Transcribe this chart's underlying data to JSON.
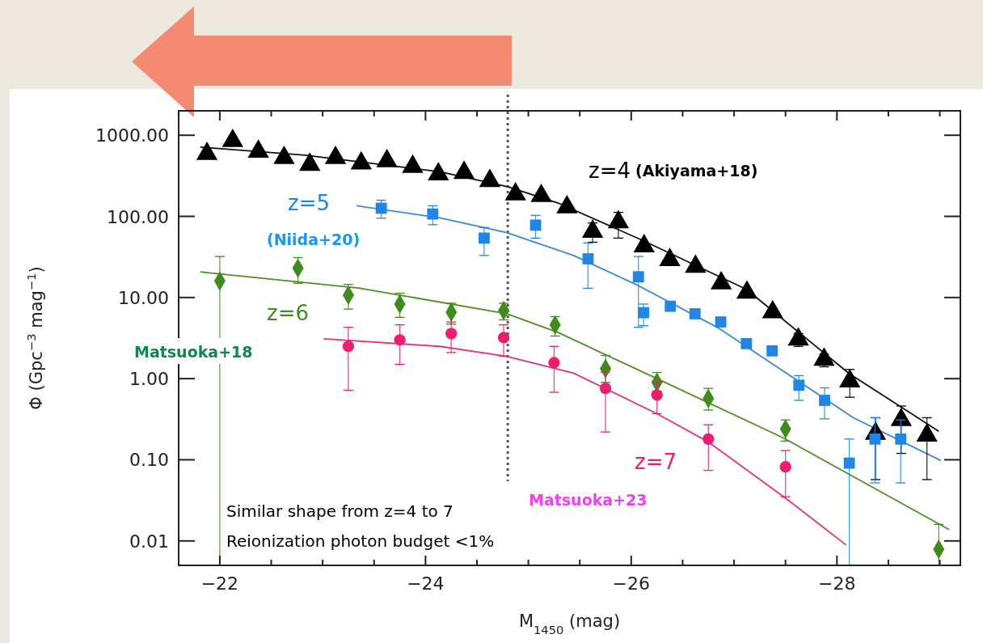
{
  "chart_data": {
    "type": "scatter",
    "xlabel": "M$_{1450}$ (mag)",
    "ylabel": "Φ (Gpc$^{−3}$ mag$^{−1}$)",
    "log": "y",
    "xlim": [
      -21.6,
      -29.2
    ],
    "ylim": [
      0.005,
      2000
    ],
    "xticks": [
      {
        "value": -22,
        "label": "−22"
      },
      {
        "value": -22.5,
        "label": null
      },
      {
        "value": -23,
        "label": null
      },
      {
        "value": -23.5,
        "label": null
      },
      {
        "value": -24,
        "label": "−24"
      },
      {
        "value": -24.5,
        "label": null
      },
      {
        "value": -25,
        "label": null
      },
      {
        "value": -25.5,
        "label": null
      },
      {
        "value": -26,
        "label": "−26"
      },
      {
        "value": -26.5,
        "label": null
      },
      {
        "value": -27,
        "label": null
      },
      {
        "value": -27.5,
        "label": null
      },
      {
        "value": -28,
        "label": "−28"
      },
      {
        "value": -28.5,
        "label": null
      },
      {
        "value": -29,
        "label": null
      }
    ],
    "yticks": [
      {
        "value": 1000,
        "label": "1000.00"
      },
      {
        "value": 100,
        "label": "100.00"
      },
      {
        "value": 10,
        "label": "10.00"
      },
      {
        "value": 1,
        "label": "1.00"
      },
      {
        "value": 0.1,
        "label": "0.10"
      },
      {
        "value": 0.01,
        "label": "0.01"
      }
    ],
    "grid": false,
    "series": [
      {
        "type": "line",
        "color": "#111111",
        "x": [
          -21.81,
          -22.83,
          -24.14,
          -24.8,
          -25.29,
          -26.12,
          -27.12,
          -28.12,
          -28.99
        ],
        "values": [
          713,
          567,
          355,
          232,
          146,
          50,
          12.6,
          1.15,
          0.225
        ]
      },
      {
        "type": "line",
        "color": "#3a88dc",
        "x": [
          -23.33,
          -24.14,
          -24.79,
          -25.44,
          -26.07,
          -26.85,
          -28.16,
          -29.01
        ],
        "values": [
          135,
          96,
          63,
          33,
          14,
          4.2,
          0.33,
          0.098
        ]
      },
      {
        "type": "line",
        "color": "#4f8f22",
        "x": [
          -21.81,
          -23.35,
          -24.79,
          -25.29,
          -26.25,
          -27.48,
          -28.12,
          -29.09
        ],
        "values": [
          20.7,
          13.1,
          6.3,
          3.7,
          1.0,
          0.186,
          0.066,
          0.0138
        ]
      },
      {
        "type": "line",
        "color": "#e63670",
        "x": [
          -23.01,
          -24.14,
          -24.79,
          -25.44,
          -26.25,
          -26.75,
          -27.51,
          -28.09
        ],
        "values": [
          3.1,
          2.5,
          1.88,
          1.17,
          0.37,
          0.166,
          0.033,
          0.0089
        ]
      },
      {
        "name": "z=4",
        "color": "#000000",
        "marker": "triangle",
        "x": [
          -21.875,
          -22.125,
          -22.375,
          -22.625,
          -22.875,
          -23.125,
          -23.375,
          -23.625,
          -23.875,
          -24.125,
          -24.375,
          -24.625,
          -24.875,
          -25.125,
          -25.375,
          -25.625,
          -25.875,
          -26.125,
          -26.375,
          -26.625,
          -26.875,
          -27.125,
          -27.375,
          -27.625,
          -27.875,
          -28.125,
          -28.375,
          -28.625,
          -28.875
        ],
        "values": [
          589,
          851,
          628,
          525,
          434,
          525,
          450,
          479,
          410,
          331,
          345,
          274,
          187,
          179,
          130,
          65,
          85,
          43,
          29,
          24,
          15,
          11.5,
          6.6,
          3.05,
          1.72,
          0.93,
          0.21,
          0.31,
          0.2
        ],
        "errors": [
          null,
          null,
          null,
          null,
          null,
          null,
          null,
          null,
          null,
          null,
          null,
          null,
          null,
          null,
          null,
          [
            48,
            83
          ],
          [
            54,
            112
          ],
          null,
          null,
          null,
          null,
          null,
          null,
          [
            2.5,
            3.6
          ],
          [
            1.4,
            2.0
          ],
          [
            0.59,
            1.3
          ],
          [
            0.057,
            0.33
          ],
          [
            0.12,
            0.46
          ],
          [
            0.057,
            0.33
          ]
        ]
      },
      {
        "name": "z=5",
        "color": "#1f86e6",
        "marker": "square",
        "x": [
          -23.57,
          -24.07,
          -24.57,
          -25.07,
          -25.58,
          -26.07,
          -26.12,
          -26.38,
          -26.62,
          -26.87,
          -27.12,
          -27.37,
          -27.63,
          -27.88,
          -28.12,
          -28.37,
          -28.62
        ],
        "values": [
          126,
          107,
          54,
          78,
          30,
          18,
          6.5,
          7.8,
          6.3,
          5.0,
          2.7,
          2.2,
          0.83,
          0.54,
          0.091,
          0.18,
          0.18
        ],
        "errors": [
          [
            95,
            158
          ],
          [
            79,
            135
          ],
          [
            33,
            73
          ],
          [
            54,
            103
          ],
          [
            13,
            47
          ],
          [
            4.3,
            32
          ],
          [
            4.5,
            8.3
          ],
          null,
          null,
          null,
          null,
          null,
          [
            0.54,
            1.09
          ],
          [
            0.32,
            0.77
          ],
          [
            0.005,
            0.18
          ],
          [
            0.052,
            0.33
          ],
          [
            0.052,
            0.31
          ]
        ]
      },
      {
        "name": "z=6",
        "color": "#3f8c1c",
        "marker": "diamond",
        "x": [
          -22.0,
          -22.76,
          -23.25,
          -23.75,
          -24.25,
          -24.76,
          -25.26,
          -25.75,
          -26.25,
          -26.75,
          -27.5,
          -28.99
        ],
        "values": [
          16,
          23,
          10.7,
          8.3,
          6.6,
          6.9,
          4.6,
          1.33,
          0.9,
          0.57,
          0.24,
          0.0079
        ],
        "errors": [
          [
            0.005,
            32
          ],
          [
            15,
            31
          ],
          [
            7.2,
            14.5
          ],
          [
            5.7,
            11.3
          ],
          [
            4.7,
            8.5
          ],
          [
            5.3,
            8.5
          ],
          [
            3.35,
            5.8
          ],
          [
            0.9,
            1.93
          ],
          [
            0.7,
            1.19
          ],
          [
            0.41,
            0.76
          ],
          [
            0.17,
            0.31
          ],
          [
            0.005,
            0.016
          ]
        ]
      },
      {
        "name": "z=7",
        "color": "#ee1e6e",
        "marker": "circle",
        "x": [
          -23.25,
          -23.75,
          -24.25,
          -24.76,
          -25.25,
          -25.75,
          -26.25,
          -26.75,
          -27.5
        ],
        "values": [
          2.5,
          3.0,
          3.6,
          3.2,
          1.57,
          0.76,
          0.63,
          0.18,
          0.082
        ],
        "errors": [
          [
            0.72,
            4.3
          ],
          [
            1.5,
            4.6
          ],
          [
            2.1,
            5.0
          ],
          [
            1.9,
            4.6
          ],
          [
            0.68,
            2.5
          ],
          [
            0.22,
            1.2
          ],
          [
            0.37,
            0.9
          ],
          [
            0.074,
            0.27
          ],
          [
            0.035,
            0.13
          ]
        ]
      }
    ],
    "ref_lines": [
      {
        "axis": "x",
        "value": -24.8,
        "color": "#555555",
        "line_style": "dotted"
      }
    ],
    "annotations": [
      "(Akiyama+18)",
      "(Niida+20)",
      "Matsuoka+18",
      "Matsuoka+23",
      "Similar shape from z=4 to 7",
      "Reionization photon budget <1%"
    ]
  }
}
